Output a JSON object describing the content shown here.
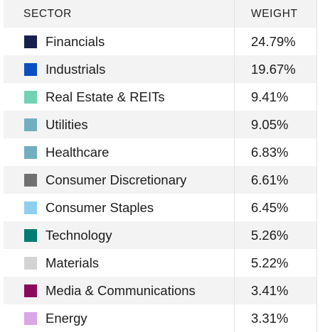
{
  "header": {
    "sector": "SECTOR",
    "weight": "WEIGHT"
  },
  "rows": [
    {
      "label": "Financials",
      "weight": "24.79%",
      "color": "#17204d"
    },
    {
      "label": "Industrials",
      "weight": "19.67%",
      "color": "#0a4fc0"
    },
    {
      "label": "Real Estate & REITs",
      "weight": "9.41%",
      "color": "#72d2b4"
    },
    {
      "label": "Utilities",
      "weight": "9.05%",
      "color": "#71afc0"
    },
    {
      "label": "Healthcare",
      "weight": "6.83%",
      "color": "#71afc0"
    },
    {
      "label": "Consumer Discretionary",
      "weight": "6.61%",
      "color": "#707070"
    },
    {
      "label": "Consumer Staples",
      "weight": "6.45%",
      "color": "#8ecff0"
    },
    {
      "label": "Technology",
      "weight": "5.26%",
      "color": "#007d6e"
    },
    {
      "label": "Materials",
      "weight": "5.22%",
      "color": "#d3d3d3"
    },
    {
      "label": "Media & Communications",
      "weight": "3.41%",
      "color": "#8c0a5c"
    },
    {
      "label": "Energy",
      "weight": "3.31%",
      "color": "#d9a6e6"
    }
  ]
}
